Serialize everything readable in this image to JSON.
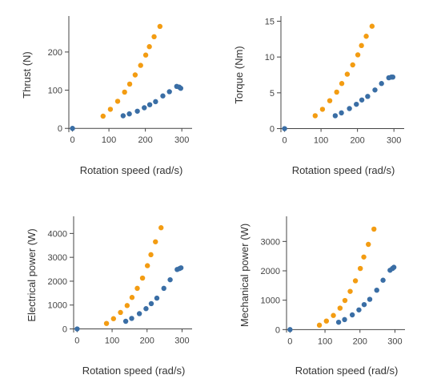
{
  "colors": {
    "series_a": "#f39c12",
    "series_b": "#3a6ea5",
    "axis": "#444444",
    "zero_line": "#444444"
  },
  "chart_data": [
    {
      "type": "scatter",
      "xlabel": "Rotation speed (rad/s)",
      "ylabel": "Thrust (N)",
      "xlim": [
        -10,
        315
      ],
      "ylim": [
        -10,
        290
      ],
      "xticks": [
        0,
        100,
        200,
        300
      ],
      "yticks": [
        0,
        100,
        200
      ],
      "series": [
        {
          "color": "#f39c12",
          "x": [
            84,
            104,
            124,
            143,
            157,
            172,
            187,
            201,
            211,
            224,
            240
          ],
          "y": [
            32,
            50,
            71,
            95,
            116,
            140,
            165,
            192,
            214,
            240,
            267
          ]
        },
        {
          "color": "#3a6ea5",
          "x": [
            0,
            139,
            156,
            178,
            197,
            212,
            228,
            248,
            266,
            286,
            293,
            297
          ],
          "y": [
            0,
            33,
            38,
            45,
            54,
            62,
            70,
            85,
            96,
            110,
            108,
            105
          ]
        }
      ]
    },
    {
      "type": "scatter",
      "xlabel": "Rotation speed (rad/s)",
      "ylabel": "Torque (Nm)",
      "xlim": [
        -10,
        315
      ],
      "ylim": [
        -0.5,
        15.5
      ],
      "xticks": [
        0,
        100,
        200,
        300
      ],
      "yticks": [
        0,
        5,
        10,
        15
      ],
      "series": [
        {
          "color": "#f39c12",
          "x": [
            84,
            104,
            124,
            143,
            157,
            172,
            187,
            201,
            211,
            224,
            240
          ],
          "y": [
            1.8,
            2.7,
            3.9,
            5.1,
            6.3,
            7.6,
            8.9,
            10.3,
            11.6,
            12.9,
            14.3
          ]
        },
        {
          "color": "#3a6ea5",
          "x": [
            0,
            139,
            156,
            178,
            197,
            212,
            228,
            248,
            266,
            286,
            293,
            297
          ],
          "y": [
            0,
            1.8,
            2.2,
            2.8,
            3.4,
            4.0,
            4.5,
            5.4,
            6.3,
            7.1,
            7.2,
            7.2
          ]
        }
      ]
    },
    {
      "type": "scatter",
      "xlabel": "Rotation speed (rad/s)",
      "ylabel": "Electrical power (W)",
      "xlim": [
        -10,
        315
      ],
      "ylim": [
        -150,
        4650
      ],
      "xticks": [
        0,
        100,
        200,
        300
      ],
      "yticks": [
        0,
        1000,
        2000,
        3000,
        4000
      ],
      "series": [
        {
          "color": "#f39c12",
          "x": [
            84,
            104,
            124,
            143,
            157,
            172,
            187,
            201,
            211,
            224,
            240
          ],
          "y": [
            230,
            430,
            690,
            980,
            1320,
            1700,
            2130,
            2650,
            3110,
            3650,
            4240
          ]
        },
        {
          "color": "#3a6ea5",
          "x": [
            0,
            139,
            156,
            178,
            197,
            212,
            228,
            248,
            266,
            286,
            293,
            297
          ],
          "y": [
            0,
            320,
            440,
            640,
            850,
            1060,
            1290,
            1700,
            2060,
            2490,
            2530,
            2560
          ]
        }
      ]
    },
    {
      "type": "scatter",
      "xlabel": "Rotation speed (rad/s)",
      "ylabel": "Mechanical power (W)",
      "xlim": [
        -10,
        315
      ],
      "ylim": [
        -100,
        3800
      ],
      "xticks": [
        0,
        100,
        200,
        300
      ],
      "yticks": [
        0,
        1000,
        2000,
        3000
      ],
      "series": [
        {
          "color": "#f39c12",
          "x": [
            84,
            104,
            124,
            143,
            157,
            172,
            187,
            201,
            211,
            224,
            240
          ],
          "y": [
            150,
            290,
            480,
            730,
            990,
            1300,
            1660,
            2080,
            2470,
            2900,
            3420
          ]
        },
        {
          "color": "#3a6ea5",
          "x": [
            0,
            139,
            156,
            178,
            197,
            212,
            228,
            248,
            266,
            286,
            293,
            297
          ],
          "y": [
            0,
            250,
            340,
            500,
            670,
            850,
            1030,
            1340,
            1680,
            2020,
            2080,
            2120
          ]
        }
      ]
    }
  ]
}
